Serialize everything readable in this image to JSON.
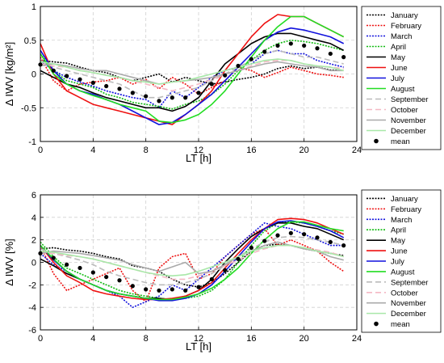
{
  "chart_data": [
    {
      "type": "line",
      "xlabel": "LT [h]",
      "ylabel": "Δ IWV [kg/m²]",
      "xlim": [
        0,
        24
      ],
      "ylim": [
        -1,
        1
      ],
      "xticks": [
        "0",
        "4",
        "8",
        "12",
        "16",
        "20",
        "24"
      ],
      "yticks": [
        "-1",
        "-0.5",
        "0",
        "0.5",
        "1"
      ],
      "grid": true,
      "legend_position": "right",
      "x": [
        0,
        1,
        2,
        3,
        4,
        5,
        6,
        7,
        8,
        9,
        10,
        11,
        12,
        13,
        14,
        15,
        16,
        17,
        18,
        19,
        20,
        21,
        22,
        23
      ],
      "series": [
        {
          "name": "January",
          "color": "#000000",
          "dash": "2,1.5",
          "values": [
            0.2,
            0.18,
            0.16,
            0.1,
            0.05,
            0.02,
            -0.05,
            -0.1,
            -0.05,
            0.0,
            -0.12,
            -0.05,
            -0.1,
            -0.15,
            -0.12,
            -0.08,
            -0.05,
            0.0,
            0.08,
            0.12,
            0.08,
            0.1,
            0.06,
            0.05
          ]
        },
        {
          "name": "February",
          "color": "#ee1111",
          "dash": "2,1.5",
          "values": [
            0.25,
            -0.1,
            -0.25,
            -0.15,
            -0.12,
            -0.1,
            -0.05,
            -0.15,
            -0.08,
            -0.22,
            -0.05,
            -0.15,
            -0.3,
            -0.2,
            -0.1,
            0.1,
            0.05,
            -0.05,
            0.02,
            0.1,
            0.05,
            0.0,
            -0.02,
            -0.05
          ]
        },
        {
          "name": "March",
          "color": "#1111dd",
          "dash": "2,1.5",
          "values": [
            0.2,
            0.05,
            -0.05,
            -0.12,
            -0.18,
            -0.25,
            -0.3,
            -0.35,
            -0.38,
            -0.5,
            -0.25,
            -0.35,
            -0.2,
            -0.05,
            0.05,
            0.1,
            0.15,
            0.3,
            0.35,
            0.3,
            0.3,
            0.2,
            0.15,
            0.1
          ]
        },
        {
          "name": "April",
          "color": "#11bb11",
          "dash": "2,1.5",
          "values": [
            0.3,
            0.05,
            -0.1,
            -0.15,
            -0.2,
            -0.3,
            -0.35,
            -0.42,
            -0.45,
            -0.48,
            -0.52,
            -0.45,
            -0.4,
            -0.3,
            -0.15,
            0.05,
            0.2,
            0.35,
            0.45,
            0.5,
            0.48,
            0.45,
            0.4,
            0.35
          ]
        },
        {
          "name": "May",
          "color": "#000000",
          "dash": "",
          "values": [
            0.05,
            -0.05,
            -0.15,
            -0.2,
            -0.28,
            -0.35,
            -0.4,
            -0.45,
            -0.5,
            -0.5,
            -0.55,
            -0.48,
            -0.35,
            -0.1,
            0.15,
            0.3,
            0.45,
            0.55,
            0.6,
            0.6,
            0.55,
            0.5,
            0.45,
            0.35
          ]
        },
        {
          "name": "June",
          "color": "#ee1111",
          "dash": "",
          "values": [
            0.45,
            0.0,
            -0.25,
            -0.35,
            -0.45,
            -0.5,
            -0.55,
            -0.6,
            -0.65,
            -0.7,
            -0.75,
            -0.6,
            -0.45,
            -0.25,
            0.05,
            0.3,
            0.55,
            0.75,
            0.88,
            0.85,
            0.85,
            0.75,
            0.65,
            0.55
          ]
        },
        {
          "name": "July",
          "color": "#1111dd",
          "dash": "",
          "values": [
            0.35,
            0.05,
            -0.15,
            -0.25,
            -0.3,
            -0.38,
            -0.45,
            -0.55,
            -0.65,
            -0.75,
            -0.72,
            -0.6,
            -0.45,
            -0.3,
            -0.1,
            0.1,
            0.3,
            0.5,
            0.62,
            0.68,
            0.65,
            0.6,
            0.55,
            0.45
          ]
        },
        {
          "name": "August",
          "color": "#22dd22",
          "dash": "",
          "values": [
            0.3,
            0.0,
            -0.15,
            -0.25,
            -0.32,
            -0.38,
            -0.45,
            -0.5,
            -0.55,
            -0.7,
            -0.72,
            -0.68,
            -0.6,
            -0.45,
            -0.25,
            0.0,
            0.25,
            0.5,
            0.7,
            0.85,
            0.85,
            0.75,
            0.65,
            0.55
          ]
        },
        {
          "name": "September",
          "color": "#bbbbbb",
          "dash": "7,4",
          "values": [
            0.2,
            0.1,
            0.05,
            0.0,
            -0.05,
            -0.1,
            -0.15,
            -0.25,
            -0.35,
            -0.35,
            -0.3,
            -0.25,
            -0.2,
            -0.1,
            0.0,
            0.1,
            0.2,
            0.3,
            0.35,
            0.3,
            0.25,
            0.25,
            0.2,
            0.15
          ]
        },
        {
          "name": "October",
          "color": "#f4b8c4",
          "dash": "7,4",
          "values": [
            0.15,
            0.12,
            0.1,
            0.05,
            0.02,
            -0.02,
            -0.05,
            -0.1,
            -0.15,
            -0.2,
            -0.25,
            -0.2,
            -0.15,
            -0.08,
            0.0,
            0.05,
            0.12,
            0.18,
            0.2,
            0.2,
            0.15,
            0.12,
            0.1,
            0.08
          ]
        },
        {
          "name": "November",
          "color": "#aaaaaa",
          "dash": "",
          "values": [
            0.12,
            0.15,
            0.12,
            0.08,
            0.05,
            0.05,
            0.0,
            -0.05,
            -0.1,
            -0.15,
            -0.12,
            -0.1,
            -0.08,
            -0.05,
            0.0,
            0.05,
            0.1,
            0.15,
            0.18,
            0.15,
            0.12,
            0.1,
            0.05,
            0.05
          ]
        },
        {
          "name": "December",
          "color": "#a8e8a8",
          "dash": "",
          "values": [
            0.18,
            0.15,
            0.1,
            0.05,
            0.02,
            -0.02,
            -0.05,
            -0.1,
            -0.12,
            -0.15,
            -0.12,
            -0.1,
            -0.05,
            0.0,
            0.05,
            0.1,
            0.15,
            0.2,
            0.22,
            0.2,
            0.15,
            0.12,
            0.1,
            0.05
          ]
        },
        {
          "name": "mean",
          "marker": "dot",
          "color": "#000000",
          "values": [
            0.14,
            0.05,
            -0.03,
            -0.08,
            -0.13,
            -0.18,
            -0.22,
            -0.28,
            -0.33,
            -0.4,
            -0.35,
            -0.35,
            -0.28,
            -0.15,
            -0.02,
            0.12,
            0.22,
            0.33,
            0.42,
            0.45,
            0.42,
            0.38,
            0.3,
            0.25
          ]
        }
      ]
    },
    {
      "type": "line",
      "xlabel": "LT [h]",
      "ylabel": "Δ IWV [%]",
      "xlim": [
        0,
        24
      ],
      "ylim": [
        -6,
        6
      ],
      "xticks": [
        "0",
        "4",
        "8",
        "12",
        "16",
        "20",
        "24"
      ],
      "yticks": [
        "-6",
        "-4",
        "-2",
        "0",
        "2",
        "4",
        "6"
      ],
      "grid": true,
      "legend_position": "right",
      "x": [
        0,
        1,
        2,
        3,
        4,
        5,
        6,
        7,
        8,
        9,
        10,
        11,
        12,
        13,
        14,
        15,
        16,
        17,
        18,
        19,
        20,
        21,
        22,
        23
      ],
      "series": [
        {
          "name": "January",
          "color": "#000000",
          "dash": "2,1.5",
          "values": [
            1.2,
            1.3,
            1.1,
            1.0,
            0.8,
            0.5,
            0.3,
            -0.3,
            -0.5,
            -0.8,
            -1.5,
            -2.0,
            -2.2,
            -1.8,
            -1.0,
            0.0,
            1.0,
            1.5,
            1.6,
            1.5,
            1.2,
            1.0,
            0.8,
            0.6
          ]
        },
        {
          "name": "February",
          "color": "#ee1111",
          "dash": "2,1.5",
          "values": [
            1.5,
            -1.0,
            -2.5,
            -2.0,
            -1.5,
            -1.0,
            -0.5,
            -2.5,
            -3.5,
            -0.5,
            0.5,
            0.8,
            -1.5,
            -1.0,
            0.5,
            1.5,
            2.5,
            3.0,
            1.5,
            2.0,
            1.5,
            1.0,
            0.0,
            -0.8
          ]
        },
        {
          "name": "March",
          "color": "#1111dd",
          "dash": "2,1.5",
          "values": [
            0.8,
            -0.2,
            -0.8,
            -1.5,
            -2.0,
            -2.5,
            -3.0,
            -4.0,
            -3.5,
            -3.0,
            -2.0,
            -2.5,
            -1.5,
            -0.5,
            0.5,
            1.5,
            2.5,
            3.5,
            3.2,
            3.0,
            2.5,
            2.0,
            1.5,
            1.5
          ]
        },
        {
          "name": "April",
          "color": "#11bb11",
          "dash": "2,1.5",
          "values": [
            1.8,
            0.5,
            -0.5,
            -1.0,
            -1.5,
            -2.0,
            -2.5,
            -2.8,
            -3.0,
            -3.2,
            -3.3,
            -3.2,
            -3.0,
            -2.5,
            -1.5,
            0.0,
            1.5,
            2.8,
            3.5,
            3.6,
            3.5,
            3.2,
            2.8,
            2.5
          ]
        },
        {
          "name": "May",
          "color": "#000000",
          "dash": "",
          "values": [
            0.3,
            -0.3,
            -1.0,
            -1.5,
            -2.0,
            -2.5,
            -2.8,
            -3.0,
            -3.2,
            -3.2,
            -3.3,
            -3.0,
            -2.5,
            -1.5,
            0.0,
            1.2,
            2.3,
            3.0,
            3.5,
            3.5,
            3.2,
            3.0,
            2.5,
            2.0
          ]
        },
        {
          "name": "June",
          "color": "#ee1111",
          "dash": "",
          "values": [
            1.5,
            0.0,
            -1.2,
            -1.8,
            -2.5,
            -2.8,
            -3.0,
            -3.2,
            -3.3,
            -3.3,
            -3.2,
            -3.0,
            -2.5,
            -1.8,
            -0.5,
            0.8,
            2.0,
            3.0,
            3.8,
            3.9,
            3.8,
            3.5,
            3.0,
            2.5
          ]
        },
        {
          "name": "July",
          "color": "#1111dd",
          "dash": "",
          "values": [
            1.5,
            0.2,
            -0.8,
            -1.5,
            -2.0,
            -2.5,
            -2.8,
            -3.0,
            -3.2,
            -3.4,
            -3.4,
            -3.2,
            -2.8,
            -2.0,
            -0.8,
            0.5,
            1.8,
            3.0,
            3.6,
            3.7,
            3.5,
            3.2,
            2.8,
            2.2
          ]
        },
        {
          "name": "August",
          "color": "#22dd22",
          "dash": "",
          "values": [
            1.5,
            0.3,
            -0.8,
            -1.5,
            -2.0,
            -2.5,
            -2.8,
            -3.0,
            -3.2,
            -3.3,
            -3.3,
            -3.1,
            -2.8,
            -2.3,
            -1.5,
            -0.5,
            0.8,
            2.0,
            3.0,
            3.6,
            3.6,
            3.3,
            3.0,
            2.8
          ]
        },
        {
          "name": "September",
          "color": "#bbbbbb",
          "dash": "7,4",
          "values": [
            1.2,
            0.8,
            0.5,
            0.2,
            -0.2,
            -0.8,
            -1.2,
            -1.5,
            -1.8,
            -2.0,
            -2.0,
            -1.8,
            -1.5,
            -1.0,
            -0.3,
            0.5,
            1.2,
            1.8,
            2.2,
            2.3,
            2.2,
            2.0,
            1.8,
            1.5
          ]
        },
        {
          "name": "October",
          "color": "#f4b8c4",
          "dash": "7,4",
          "values": [
            0.8,
            0.8,
            0.6,
            0.5,
            0.3,
            0.0,
            -0.3,
            -0.6,
            -0.9,
            -1.2,
            -1.5,
            -1.5,
            -1.2,
            -0.8,
            -0.3,
            0.2,
            0.8,
            1.2,
            1.5,
            1.5,
            1.3,
            1.1,
            0.9,
            0.5
          ]
        },
        {
          "name": "November",
          "color": "#aaaaaa",
          "dash": "",
          "values": [
            0.8,
            1.0,
            0.9,
            0.8,
            0.6,
            0.4,
            0.2,
            -0.2,
            -0.5,
            -0.8,
            -0.4,
            0.0,
            -1.0,
            -0.8,
            -0.2,
            0.5,
            1.0,
            1.5,
            1.8,
            1.5,
            1.2,
            1.0,
            0.5,
            0.2
          ]
        },
        {
          "name": "December",
          "color": "#a8e8a8",
          "dash": "",
          "values": [
            1.0,
            0.9,
            0.7,
            0.5,
            0.3,
            0.0,
            -0.3,
            -0.6,
            -0.9,
            -1.1,
            -1.2,
            -1.1,
            -0.8,
            -0.4,
            0.0,
            0.5,
            1.0,
            1.3,
            1.5,
            1.5,
            1.3,
            1.0,
            0.8,
            0.5
          ]
        },
        {
          "name": "mean",
          "marker": "dot",
          "color": "#000000",
          "values": [
            0.8,
            0.4,
            -0.2,
            -0.5,
            -0.9,
            -1.3,
            -1.6,
            -2.1,
            -2.4,
            -2.5,
            -2.4,
            -2.5,
            -2.2,
            -1.5,
            -0.7,
            0.3,
            1.3,
            1.9,
            2.4,
            2.6,
            2.5,
            2.2,
            1.8,
            1.5
          ]
        }
      ]
    }
  ]
}
